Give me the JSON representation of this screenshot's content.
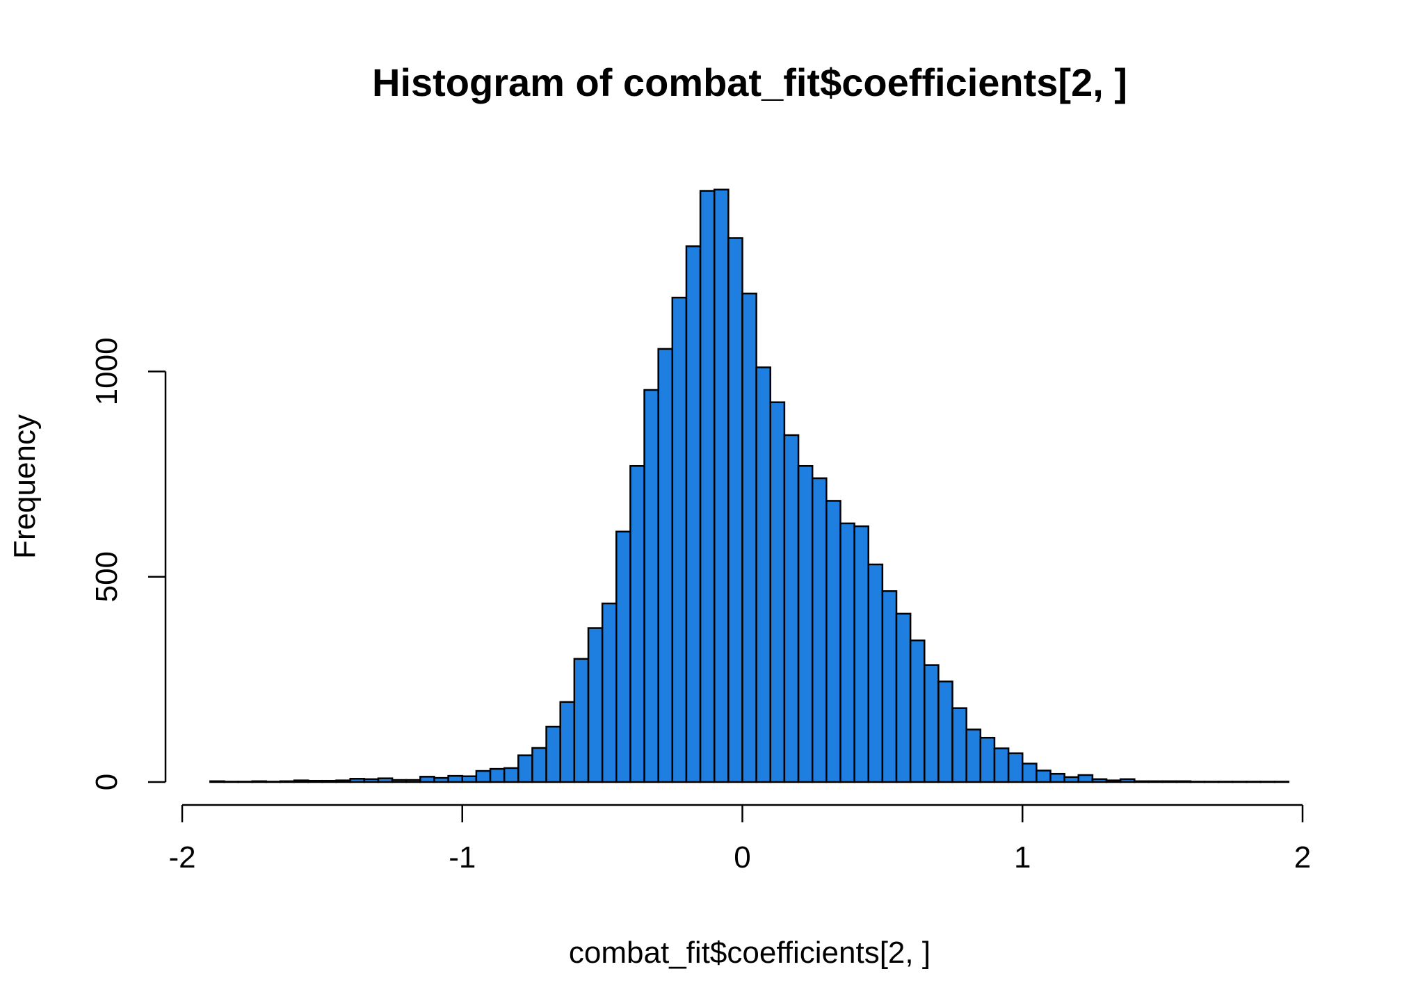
{
  "chart_data": {
    "type": "bar",
    "title": "Histogram of combat_fit$coefficients[2, ]",
    "xlabel": "combat_fit$coefficients[2, ]",
    "ylabel": "Frequency",
    "xlim": [
      -2,
      2
    ],
    "ylim": [
      0,
      1450
    ],
    "x_ticks": [
      "-2",
      "-1",
      "0",
      "1",
      "2"
    ],
    "x_tick_values": [
      -2,
      -1,
      0,
      1,
      2
    ],
    "y_ticks": [
      "0",
      "500",
      "1000"
    ],
    "y_tick_values": [
      0,
      500,
      1000
    ],
    "bin_start": -1.9,
    "bin_width": 0.05,
    "values": [
      2,
      1,
      1,
      2,
      1,
      2,
      4,
      3,
      3,
      4,
      8,
      7,
      9,
      5,
      5,
      13,
      10,
      15,
      14,
      27,
      32,
      34,
      65,
      83,
      135,
      195,
      300,
      375,
      435,
      610,
      770,
      955,
      1055,
      1180,
      1305,
      1440,
      1443,
      1325,
      1190,
      1010,
      925,
      845,
      770,
      740,
      685,
      630,
      623,
      530,
      465,
      410,
      345,
      285,
      245,
      180,
      128,
      108,
      82,
      70,
      45,
      28,
      20,
      12,
      17,
      7,
      4,
      7,
      2,
      2,
      2,
      2,
      1,
      1,
      1,
      1,
      1,
      1,
      1
    ],
    "bar_color": "#1E7FE0",
    "grid": false,
    "legend": "none"
  }
}
